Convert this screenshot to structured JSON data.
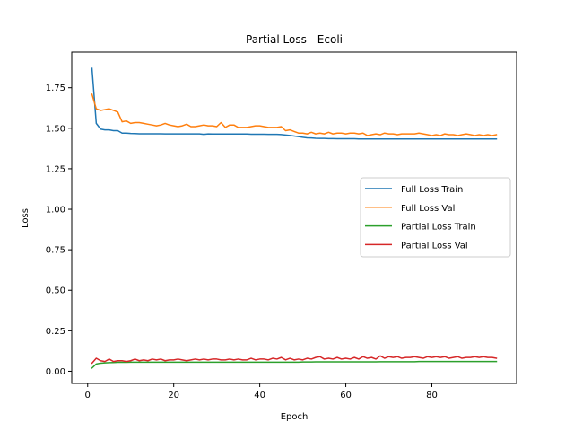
{
  "chart_data": {
    "type": "line",
    "title": "Partial Loss - Ecoli",
    "xlabel": "Epoch",
    "ylabel": "Loss",
    "xlim": [
      -3.7,
      99.7
    ],
    "ylim": [
      -0.075,
      1.97
    ],
    "xticks": [
      0,
      20,
      40,
      60,
      80
    ],
    "yticks": [
      0.0,
      0.25,
      0.5,
      0.75,
      1.0,
      1.25,
      1.5,
      1.75
    ],
    "ytick_labels": [
      "0.00",
      "0.25",
      "0.50",
      "0.75",
      "1.00",
      "1.25",
      "1.50",
      "1.75"
    ],
    "grid": false,
    "legend_position": "center-right",
    "x": [
      1,
      2,
      3,
      4,
      5,
      6,
      7,
      8,
      9,
      10,
      11,
      12,
      13,
      14,
      15,
      16,
      17,
      18,
      19,
      20,
      21,
      22,
      23,
      24,
      25,
      26,
      27,
      28,
      29,
      30,
      31,
      32,
      33,
      34,
      35,
      36,
      37,
      38,
      39,
      40,
      41,
      42,
      43,
      44,
      45,
      46,
      47,
      48,
      49,
      50,
      51,
      52,
      53,
      54,
      55,
      56,
      57,
      58,
      59,
      60,
      61,
      62,
      63,
      64,
      65,
      66,
      67,
      68,
      69,
      70,
      71,
      72,
      73,
      74,
      75,
      76,
      77,
      78,
      79,
      80,
      81,
      82,
      83,
      84,
      85,
      86,
      87,
      88,
      89,
      90,
      91,
      92,
      93,
      94,
      95
    ],
    "series": [
      {
        "name": "Full Loss Train",
        "color": "#1f77b4",
        "values": [
          1.87,
          1.53,
          1.495,
          1.49,
          1.49,
          1.485,
          1.485,
          1.47,
          1.47,
          1.468,
          1.467,
          1.466,
          1.466,
          1.466,
          1.466,
          1.466,
          1.466,
          1.465,
          1.465,
          1.465,
          1.465,
          1.465,
          1.465,
          1.465,
          1.465,
          1.465,
          1.462,
          1.465,
          1.464,
          1.464,
          1.464,
          1.464,
          1.464,
          1.464,
          1.464,
          1.464,
          1.464,
          1.463,
          1.463,
          1.463,
          1.463,
          1.462,
          1.462,
          1.462,
          1.461,
          1.458,
          1.455,
          1.452,
          1.448,
          1.444,
          1.441,
          1.44,
          1.438,
          1.437,
          1.437,
          1.436,
          1.436,
          1.435,
          1.435,
          1.435,
          1.435,
          1.435,
          1.434,
          1.434,
          1.434,
          1.434,
          1.434,
          1.434,
          1.434,
          1.434,
          1.434,
          1.434,
          1.434,
          1.434,
          1.434,
          1.434,
          1.434,
          1.434,
          1.434,
          1.434,
          1.434,
          1.434,
          1.434,
          1.434,
          1.434,
          1.434,
          1.434,
          1.434,
          1.434,
          1.434,
          1.434,
          1.434,
          1.434,
          1.434,
          1.434
        ]
      },
      {
        "name": "Full Loss Val",
        "color": "#ff7f0e",
        "values": [
          1.71,
          1.62,
          1.61,
          1.615,
          1.62,
          1.61,
          1.6,
          1.54,
          1.545,
          1.53,
          1.535,
          1.535,
          1.53,
          1.525,
          1.52,
          1.515,
          1.52,
          1.53,
          1.52,
          1.515,
          1.51,
          1.515,
          1.525,
          1.51,
          1.51,
          1.515,
          1.52,
          1.515,
          1.515,
          1.51,
          1.535,
          1.505,
          1.52,
          1.52,
          1.505,
          1.505,
          1.505,
          1.51,
          1.515,
          1.515,
          1.51,
          1.505,
          1.505,
          1.505,
          1.51,
          1.485,
          1.49,
          1.48,
          1.47,
          1.47,
          1.465,
          1.475,
          1.465,
          1.47,
          1.465,
          1.475,
          1.465,
          1.47,
          1.47,
          1.465,
          1.47,
          1.47,
          1.465,
          1.47,
          1.455,
          1.46,
          1.465,
          1.46,
          1.47,
          1.465,
          1.465,
          1.46,
          1.465,
          1.465,
          1.465,
          1.465,
          1.47,
          1.465,
          1.46,
          1.455,
          1.46,
          1.455,
          1.465,
          1.46,
          1.46,
          1.455,
          1.46,
          1.465,
          1.46,
          1.455,
          1.46,
          1.455,
          1.46,
          1.455,
          1.46
        ]
      },
      {
        "name": "Partial Loss Train",
        "color": "#2ca02c",
        "values": [
          0.02,
          0.045,
          0.05,
          0.052,
          0.053,
          0.054,
          0.055,
          0.055,
          0.055,
          0.056,
          0.056,
          0.056,
          0.056,
          0.056,
          0.056,
          0.056,
          0.056,
          0.056,
          0.056,
          0.056,
          0.056,
          0.056,
          0.056,
          0.056,
          0.056,
          0.056,
          0.056,
          0.056,
          0.056,
          0.056,
          0.056,
          0.056,
          0.056,
          0.056,
          0.056,
          0.056,
          0.056,
          0.056,
          0.056,
          0.056,
          0.056,
          0.056,
          0.056,
          0.056,
          0.056,
          0.056,
          0.056,
          0.056,
          0.056,
          0.057,
          0.057,
          0.057,
          0.058,
          0.058,
          0.058,
          0.058,
          0.058,
          0.058,
          0.058,
          0.058,
          0.058,
          0.058,
          0.058,
          0.058,
          0.058,
          0.058,
          0.058,
          0.059,
          0.059,
          0.059,
          0.059,
          0.059,
          0.059,
          0.059,
          0.059,
          0.059,
          0.06,
          0.06,
          0.06,
          0.06,
          0.06,
          0.06,
          0.06,
          0.06,
          0.06,
          0.06,
          0.06,
          0.06,
          0.06,
          0.06,
          0.06,
          0.06,
          0.06,
          0.06,
          0.06
        ]
      },
      {
        "name": "Partial Loss Val",
        "color": "#d62728",
        "values": [
          0.05,
          0.08,
          0.065,
          0.06,
          0.075,
          0.06,
          0.065,
          0.065,
          0.06,
          0.065,
          0.075,
          0.065,
          0.07,
          0.065,
          0.075,
          0.07,
          0.075,
          0.065,
          0.07,
          0.07,
          0.075,
          0.07,
          0.065,
          0.07,
          0.075,
          0.07,
          0.075,
          0.07,
          0.075,
          0.075,
          0.07,
          0.07,
          0.075,
          0.07,
          0.075,
          0.07,
          0.07,
          0.08,
          0.07,
          0.075,
          0.075,
          0.07,
          0.08,
          0.075,
          0.085,
          0.07,
          0.08,
          0.07,
          0.075,
          0.07,
          0.08,
          0.075,
          0.085,
          0.09,
          0.075,
          0.08,
          0.075,
          0.085,
          0.075,
          0.08,
          0.075,
          0.085,
          0.075,
          0.09,
          0.08,
          0.085,
          0.075,
          0.095,
          0.08,
          0.09,
          0.085,
          0.09,
          0.08,
          0.085,
          0.085,
          0.09,
          0.085,
          0.08,
          0.09,
          0.085,
          0.09,
          0.085,
          0.09,
          0.08,
          0.085,
          0.09,
          0.08,
          0.085,
          0.085,
          0.09,
          0.085,
          0.09,
          0.085,
          0.085,
          0.08
        ]
      }
    ]
  }
}
